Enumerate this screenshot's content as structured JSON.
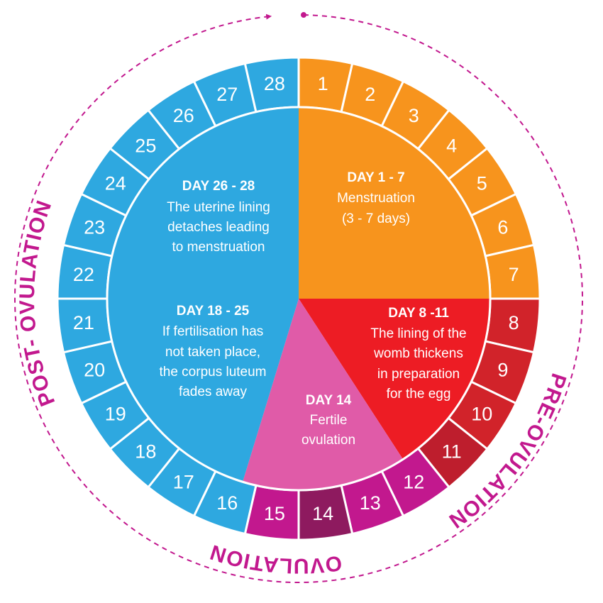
{
  "colors": {
    "menstruation": "#F7941D",
    "pre_ovulation": "#ED1C24",
    "pre_ovulation_ring": "#D1232A",
    "pre_ovulation_ring_dark": "#BE1E2D",
    "ovulation_center": "#E05BA8",
    "ovulation_ring": "#C2188E",
    "ovulation_ring_peak": "#8E1A5F",
    "post_ovulation": "#2EA8E0",
    "phase_label": "#C2188E",
    "dashed_arc": "#C2188E",
    "separator": "#ffffff"
  },
  "days": [
    {
      "n": "1",
      "color": "#F7941D"
    },
    {
      "n": "2",
      "color": "#F7941D"
    },
    {
      "n": "3",
      "color": "#F7941D"
    },
    {
      "n": "4",
      "color": "#F7941D"
    },
    {
      "n": "5",
      "color": "#F7941D"
    },
    {
      "n": "6",
      "color": "#F7941D"
    },
    {
      "n": "7",
      "color": "#F7941D"
    },
    {
      "n": "8",
      "color": "#D1232A"
    },
    {
      "n": "9",
      "color": "#D1232A"
    },
    {
      "n": "10",
      "color": "#D1232A"
    },
    {
      "n": "11",
      "color": "#BE1E2D"
    },
    {
      "n": "12",
      "color": "#C2188E"
    },
    {
      "n": "13",
      "color": "#C2188E"
    },
    {
      "n": "14",
      "color": "#8E1A5F"
    },
    {
      "n": "15",
      "color": "#C2188E"
    },
    {
      "n": "16",
      "color": "#2EA8E0"
    },
    {
      "n": "17",
      "color": "#2EA8E0"
    },
    {
      "n": "18",
      "color": "#2EA8E0"
    },
    {
      "n": "19",
      "color": "#2EA8E0"
    },
    {
      "n": "20",
      "color": "#2EA8E0"
    },
    {
      "n": "21",
      "color": "#2EA8E0"
    },
    {
      "n": "22",
      "color": "#2EA8E0"
    },
    {
      "n": "23",
      "color": "#2EA8E0"
    },
    {
      "n": "24",
      "color": "#2EA8E0"
    },
    {
      "n": "25",
      "color": "#2EA8E0"
    },
    {
      "n": "26",
      "color": "#2EA8E0"
    },
    {
      "n": "27",
      "color": "#2EA8E0"
    },
    {
      "n": "28",
      "color": "#2EA8E0"
    }
  ],
  "segments": {
    "menstruation": {
      "title": "DAY 1 - 7",
      "lines": [
        "Menstruation",
        "(3 - 7 days)"
      ]
    },
    "pre_ovulation": {
      "title": "DAY 8 -11",
      "lines": [
        "The lining of the",
        "womb thickens",
        "in preparation",
        "for the egg"
      ]
    },
    "ovulation": {
      "title": "DAY 14",
      "lines": [
        "Fertile",
        "ovulation"
      ]
    },
    "post_ovulation_a": {
      "title": "DAY  26 - 28",
      "lines": [
        "The uterine lining",
        "detaches leading",
        "to menstruation"
      ]
    },
    "post_ovulation_b": {
      "title": "DAY 18 - 25",
      "lines": [
        "If fertilisation has",
        "not taken place,",
        "the corpus luteum",
        "fades away"
      ]
    }
  },
  "phase_labels": {
    "pre_ovulation": "PRE-OVULATION",
    "ovulation": "OVULATION",
    "post_ovulation": "POST- OVULATION"
  }
}
